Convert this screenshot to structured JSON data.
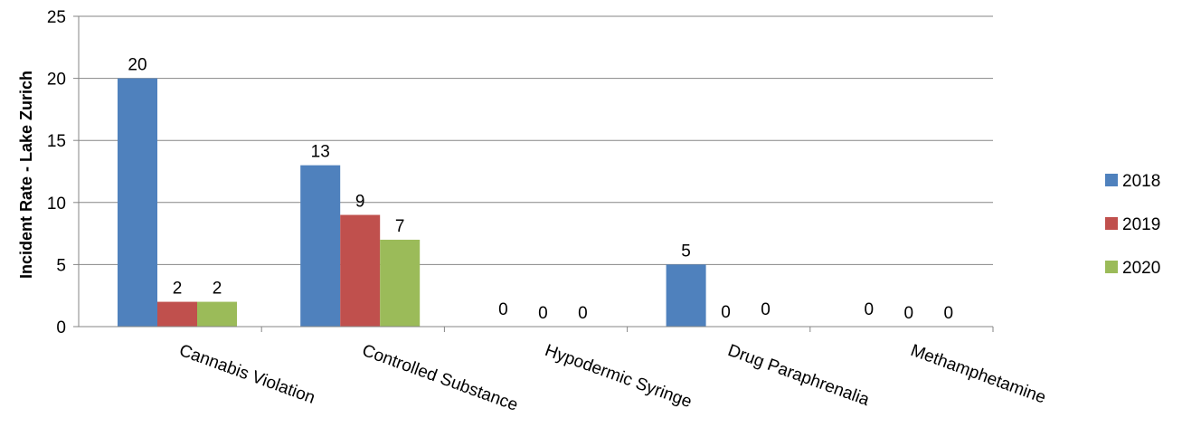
{
  "chart_data": {
    "type": "bar",
    "title": "",
    "xlabel": "",
    "ylabel": "Incident Rate - Lake Zurich",
    "ylim": [
      0,
      25
    ],
    "yticks": [
      0,
      5,
      10,
      15,
      20,
      25
    ],
    "grid": true,
    "legend_position": "right",
    "categories": [
      "Cannabis Violation",
      "Controlled Substance",
      "Hypodermic Syringe",
      "Drug Paraphrenalia",
      "Methamphetamine"
    ],
    "series": [
      {
        "name": "2018",
        "color": "#4F81BD",
        "values": [
          20,
          13,
          0,
          5,
          0
        ]
      },
      {
        "name": "2019",
        "color": "#C0504D",
        "values": [
          2,
          9,
          0,
          0,
          0
        ]
      },
      {
        "name": "2020",
        "color": "#9BBB59",
        "values": [
          2,
          7,
          0,
          0,
          0
        ]
      }
    ]
  }
}
